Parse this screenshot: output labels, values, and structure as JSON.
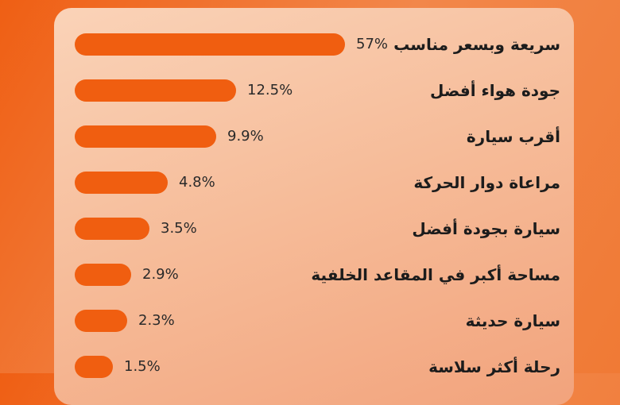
{
  "chart_data": {
    "type": "bar",
    "orientation": "horizontal",
    "categories": [
      "سريعة وبسعر مناسب",
      "جودة هواء أفضل",
      "أقرب سيارة",
      "مراعاة دوار الحركة",
      "سيارة بجودة أفضل",
      "مساحة أكبر في المقاعد الخلفية",
      "سيارة حديثة",
      "رحلة أكثر سلاسة"
    ],
    "values": [
      57,
      12.5,
      9.9,
      4.8,
      3.5,
      2.9,
      2.3,
      1.5
    ],
    "value_labels": [
      "57%",
      "12.5%",
      "9.9%",
      "4.8%",
      "3.5%",
      "2.9%",
      "2.3%",
      "1.5%"
    ],
    "unit": "%",
    "grid": false,
    "colors": {
      "bar": "#f05e10",
      "background": "#ef5f14",
      "card": "#f8c9a8"
    }
  }
}
